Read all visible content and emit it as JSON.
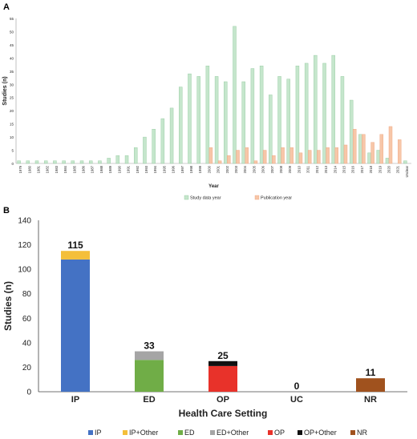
{
  "chart_data": [
    {
      "panel": "A",
      "type": "bar",
      "xlabel": "Year",
      "ylabel": "Studies (n)",
      "ylim": [
        0,
        55
      ],
      "yticks": [
        0,
        5,
        10,
        15,
        20,
        25,
        30,
        35,
        40,
        45,
        50,
        55
      ],
      "categories": [
        "1979",
        "1980",
        "1981",
        "1982",
        "1983",
        "1984",
        "1985",
        "1986",
        "1987",
        "1988",
        "1989",
        "1990",
        "1991",
        "1992",
        "1993",
        "1994",
        "1995",
        "1996",
        "1997",
        "1998",
        "1999",
        "2000",
        "2001",
        "2002",
        "2003",
        "2004",
        "2005",
        "2006",
        "2007",
        "2008",
        "2009",
        "2010",
        "2011",
        "2012",
        "2013",
        "2014",
        "2015",
        "2016",
        "2017",
        "2018",
        "2019",
        "2020",
        "2021",
        "Unclear"
      ],
      "series": [
        {
          "name": "Study data year",
          "color": "#c5e6cc",
          "stroke": "#8fc79b",
          "values": [
            1,
            1,
            1,
            1,
            1,
            1,
            1,
            1,
            1,
            1,
            2,
            3,
            3,
            6,
            10,
            13,
            17,
            21,
            29,
            34,
            33,
            37,
            33,
            31,
            52,
            31,
            36,
            37,
            26,
            33,
            32,
            37,
            38,
            41,
            38,
            41,
            33,
            24,
            11,
            4,
            5,
            2,
            0,
            1
          ]
        },
        {
          "name": "Publication year",
          "color": "#f7c6a8",
          "stroke": "#eea27a",
          "values": [
            0,
            0,
            0,
            0,
            0,
            0,
            0,
            0,
            0,
            0,
            0,
            0,
            0,
            0,
            0,
            0,
            0,
            0,
            0,
            0,
            0,
            6,
            1,
            3,
            5,
            6,
            1,
            5,
            3,
            6,
            6,
            4,
            5,
            5,
            6,
            6,
            7,
            13,
            11,
            8,
            11,
            14,
            9,
            0
          ]
        }
      ],
      "grid": false,
      "legend": "bottom"
    },
    {
      "panel": "B",
      "type": "bar",
      "stacked": true,
      "xlabel": "Health Care Setting",
      "ylabel": "Studies (n)",
      "ylim": [
        0,
        140
      ],
      "yticks": [
        0,
        20,
        40,
        60,
        80,
        100,
        120,
        140
      ],
      "categories": [
        "IP",
        "ED",
        "OP",
        "UC",
        "NR"
      ],
      "totals": [
        "115",
        "33",
        "25",
        "0",
        "11"
      ],
      "series": [
        {
          "name": "IP",
          "color": "#4472c4",
          "values": [
            108,
            0,
            0,
            0,
            0
          ]
        },
        {
          "name": "IP+Other",
          "color": "#f4bf3a",
          "values": [
            7,
            0,
            0,
            0,
            0
          ]
        },
        {
          "name": "ED",
          "color": "#70ad47",
          "values": [
            0,
            26,
            0,
            0,
            0
          ]
        },
        {
          "name": "ED+Other",
          "color": "#a5a5a5",
          "values": [
            0,
            7,
            0,
            0,
            0
          ]
        },
        {
          "name": "OP",
          "color": "#e8322a",
          "values": [
            0,
            0,
            21,
            0,
            0
          ]
        },
        {
          "name": "OP+Other",
          "color": "#111111",
          "values": [
            0,
            0,
            4,
            0,
            0
          ]
        },
        {
          "name": "NR",
          "color": "#a0521e",
          "values": [
            0,
            0,
            0,
            0,
            11
          ]
        }
      ],
      "grid": false,
      "legend": "bottom"
    }
  ]
}
